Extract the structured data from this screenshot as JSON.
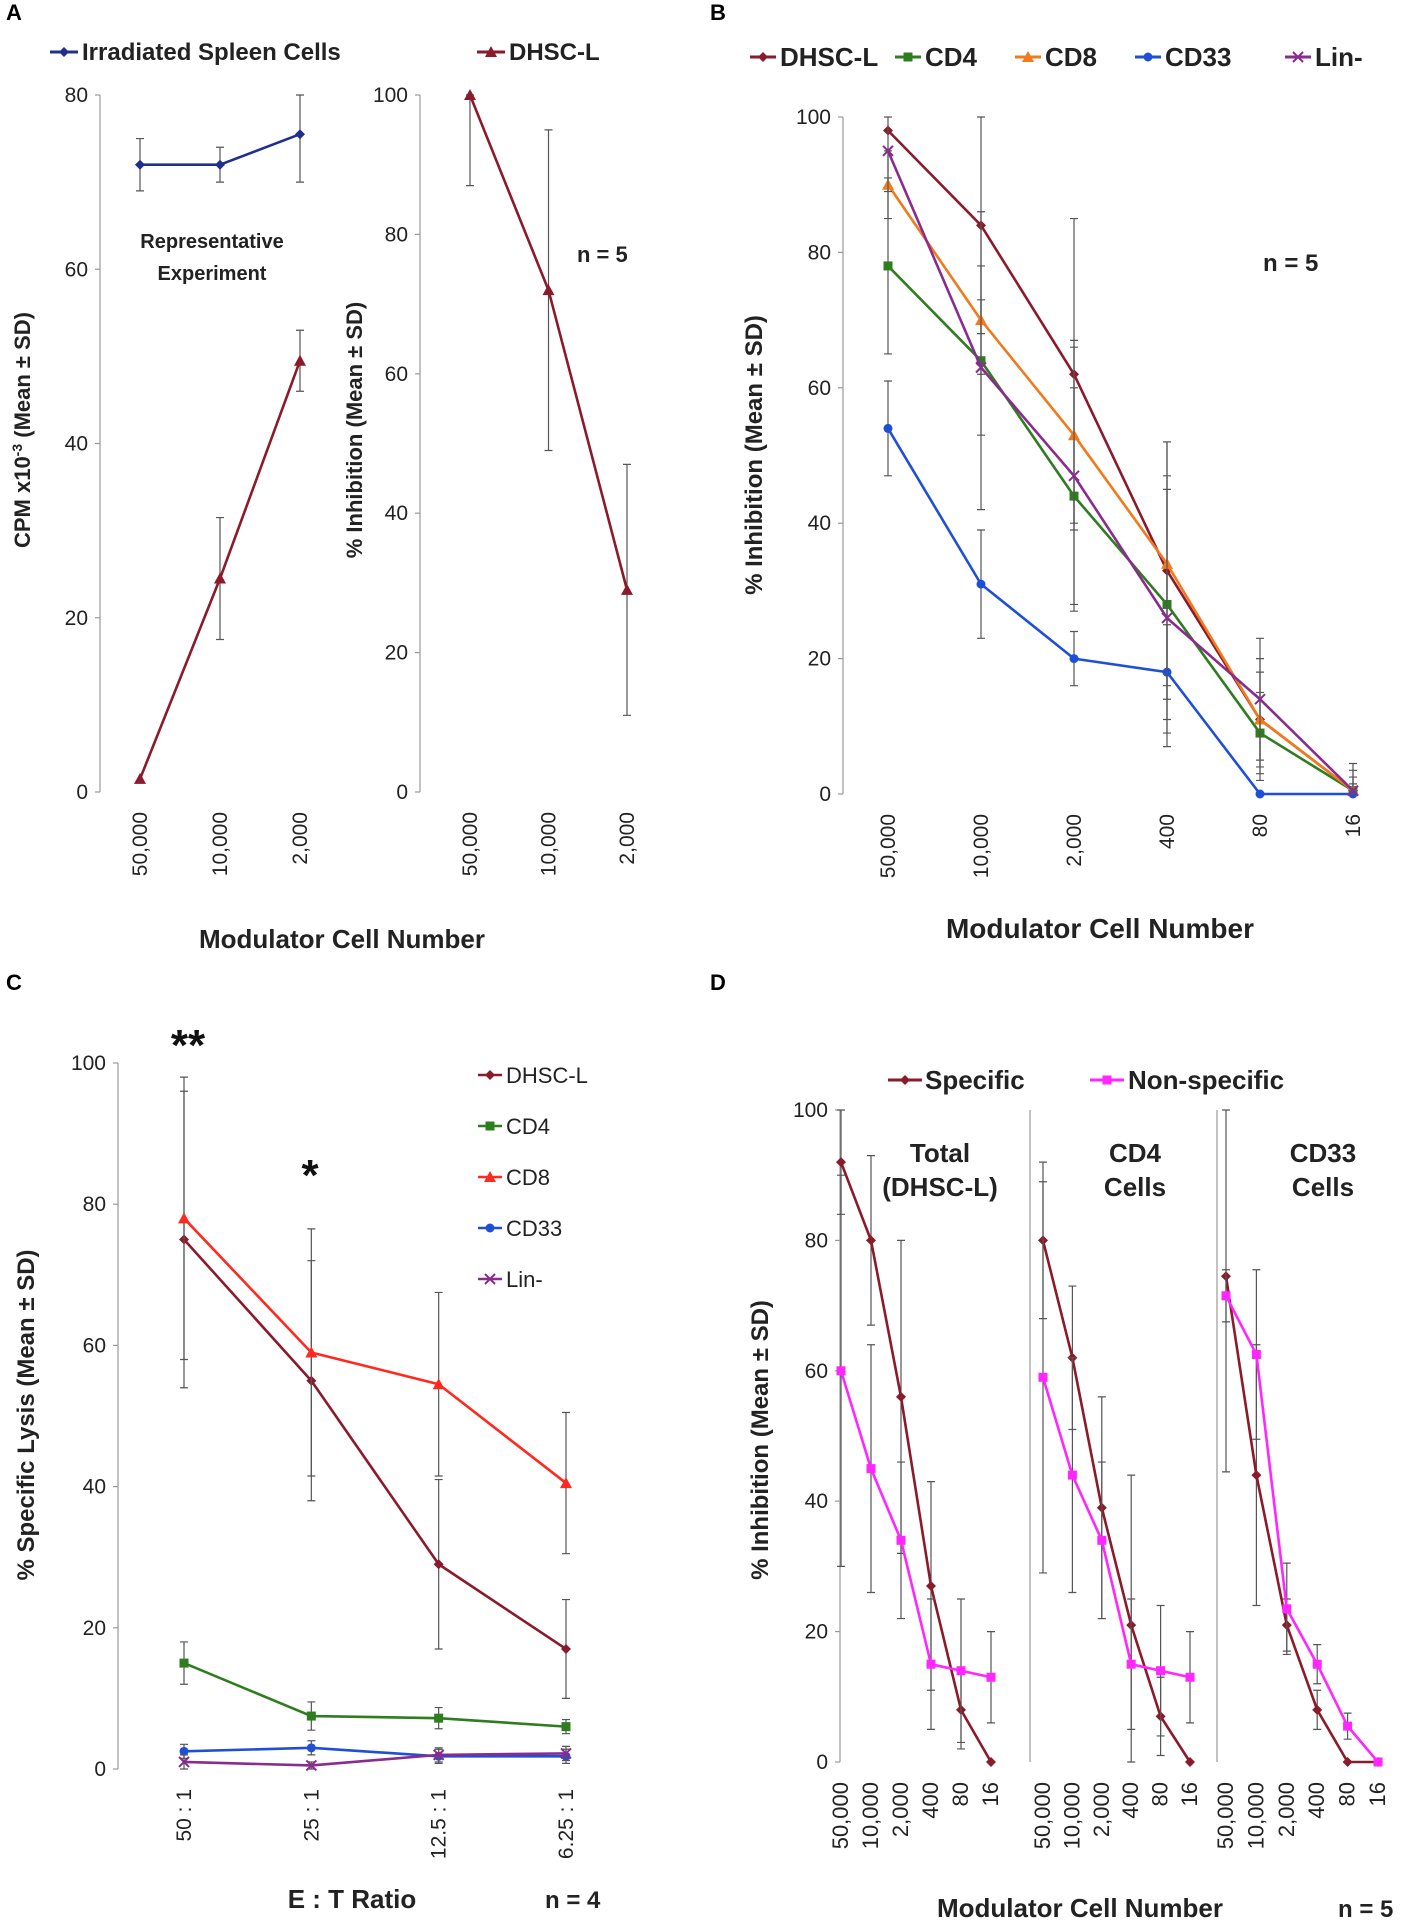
{
  "colors": {
    "dhsc": "#8b1a2b",
    "spleen": "#1f2f8f",
    "cd4": "#2e7d1f",
    "cd8_b": "#f07a1c",
    "cd8_c": "#ff2a1f",
    "cd33": "#1f4fd6",
    "lin": "#8a2b8f",
    "specific": "#8b1a2b",
    "nonspecific": "#ff26ff",
    "error": "#555555",
    "axis": "#999999",
    "text": "#222222"
  },
  "panels": {
    "A": {
      "label": "A",
      "legend": [
        "Irradiated Spleen Cells",
        "DHSC-L"
      ],
      "xlabel": "Modulator Cell Number",
      "annotation": "Representative\nExperiment",
      "n_label": "n = 5"
    },
    "B": {
      "label": "B",
      "xlabel": "Modulator Cell Number",
      "n_label": "n = 5"
    },
    "C": {
      "label": "C",
      "xlabel": "E : T Ratio",
      "n_label": "n = 4",
      "sig1": "**",
      "sig2": "*"
    },
    "D": {
      "label": "D",
      "legend": [
        "Specific",
        "Non-specific"
      ],
      "xlabel": "Modulator Cell Number",
      "n_label": "n = 5",
      "titles": [
        "Total\n(DHSC-L)",
        "CD4\nCells",
        "CD33\nCells"
      ]
    }
  },
  "chart_data": [
    {
      "id": "A1",
      "type": "line",
      "title": "",
      "ylabel": "CPM x10-3 (Mean ± SD)",
      "ylim": [
        0,
        80
      ],
      "yticks": [
        0,
        20,
        40,
        60,
        80
      ],
      "categories": [
        "50,000",
        "10,000",
        "2,000"
      ],
      "series": [
        {
          "name": "Irradiated Spleen Cells",
          "marker": "diamond",
          "values": [
            72,
            72,
            75.5
          ],
          "err": [
            3,
            2,
            5.5
          ]
        },
        {
          "name": "DHSC-L",
          "marker": "triangle",
          "values": [
            1.5,
            24.5,
            49.5
          ],
          "err": [
            0,
            7,
            3.5
          ]
        }
      ]
    },
    {
      "id": "A2",
      "type": "line",
      "ylabel": "% Inhibition (Mean ± SD)",
      "ylim": [
        0,
        100
      ],
      "yticks": [
        0,
        20,
        40,
        60,
        80,
        100
      ],
      "categories": [
        "50,000",
        "10,000",
        "2,000"
      ],
      "series": [
        {
          "name": "DHSC-L",
          "marker": "triangle",
          "values": [
            100,
            72,
            29
          ],
          "err": [
            13,
            23,
            18
          ]
        }
      ]
    },
    {
      "id": "B",
      "type": "line",
      "ylabel": "% Inhibition (Mean ± SD)",
      "ylim": [
        0,
        100
      ],
      "yticks": [
        0,
        20,
        40,
        60,
        80,
        100
      ],
      "categories": [
        "50,000",
        "10,000",
        "2,000",
        "400",
        "80",
        "16"
      ],
      "series": [
        {
          "name": "DHSC-L",
          "marker": "diamond",
          "values": [
            98,
            84,
            62,
            33,
            11,
            0.5
          ],
          "err": [
            0,
            16,
            23,
            19,
            7,
            1
          ]
        },
        {
          "name": "CD4",
          "marker": "square",
          "values": [
            78,
            64,
            44,
            28,
            9,
            0.5
          ],
          "err": [
            13,
            22,
            16,
            19,
            6,
            2
          ]
        },
        {
          "name": "CD8",
          "marker": "triangle",
          "values": [
            90,
            70,
            53,
            34,
            11,
            0.5
          ],
          "err": [
            5,
            8,
            13,
            18,
            9,
            3
          ]
        },
        {
          "name": "CD33",
          "marker": "circle",
          "values": [
            54,
            31,
            20,
            18,
            0,
            0
          ],
          "err": [
            7,
            8,
            4,
            7,
            0,
            0
          ]
        },
        {
          "name": "Lin-",
          "marker": "x",
          "values": [
            95,
            63,
            47,
            26,
            14,
            0.5
          ],
          "err": [
            6,
            10,
            20,
            19,
            9,
            4
          ]
        }
      ]
    },
    {
      "id": "C",
      "type": "line",
      "ylabel": "% Specific Lysis (Mean ± SD)",
      "ylim": [
        0,
        100
      ],
      "yticks": [
        0,
        20,
        40,
        60,
        80,
        100
      ],
      "categories": [
        "50 : 1",
        "25 : 1",
        "12.5 : 1",
        "6.25 : 1"
      ],
      "series": [
        {
          "name": "DHSC-L",
          "marker": "diamond",
          "values": [
            75,
            55,
            29,
            17
          ],
          "err": [
            21,
            17,
            12,
            7
          ]
        },
        {
          "name": "CD4",
          "marker": "square",
          "values": [
            15,
            7.5,
            7.2,
            6
          ],
          "err": [
            3,
            2,
            1.5,
            1
          ]
        },
        {
          "name": "CD8",
          "marker": "triangle",
          "values": [
            78,
            59,
            54.5,
            40.5
          ],
          "err": [
            20,
            17.5,
            13,
            10
          ]
        },
        {
          "name": "CD33",
          "marker": "circle",
          "values": [
            2.5,
            3,
            1.8,
            1.8
          ],
          "err": [
            1,
            1,
            1,
            1
          ]
        },
        {
          "name": "Lin-",
          "marker": "x",
          "values": [
            1,
            0.5,
            2,
            2.2
          ],
          "err": [
            1,
            0.5,
            1,
            1
          ]
        }
      ]
    },
    {
      "id": "D1",
      "type": "line",
      "title": "Total\n(DHSC-L)",
      "ylabel": "% Inhibition (Mean ± SD)",
      "ylim": [
        0,
        100
      ],
      "yticks": [
        0,
        20,
        40,
        60,
        80,
        100
      ],
      "categories": [
        "50,000",
        "10,000",
        "2,000",
        "400",
        "80",
        "16"
      ],
      "series": [
        {
          "name": "Specific",
          "marker": "diamond",
          "values": [
            92,
            80,
            56,
            27,
            8,
            0
          ],
          "err": [
            8,
            13,
            24,
            16,
            6,
            0
          ]
        },
        {
          "name": "Non-specific",
          "marker": "square",
          "values": [
            60,
            45,
            34,
            15,
            14,
            13
          ],
          "err": [
            30,
            19,
            12,
            10,
            11,
            7
          ]
        }
      ]
    },
    {
      "id": "D2",
      "type": "line",
      "title": "CD4\nCells",
      "ylim": [
        0,
        100
      ],
      "categories": [
        "50,000",
        "10,000",
        "2,000",
        "400",
        "80",
        "16"
      ],
      "series": [
        {
          "name": "Specific",
          "marker": "diamond",
          "values": [
            80,
            62,
            39,
            21,
            7,
            0
          ],
          "err": [
            12,
            11,
            17,
            23,
            6,
            0
          ]
        },
        {
          "name": "Non-specific",
          "marker": "square",
          "values": [
            59,
            44,
            34,
            15,
            14,
            13
          ],
          "err": [
            30,
            18,
            12,
            10,
            10,
            7
          ]
        }
      ]
    },
    {
      "id": "D3",
      "type": "line",
      "title": "CD33\nCells",
      "ylim": [
        0,
        100
      ],
      "categories": [
        "50,000",
        "10,000",
        "2,000",
        "400",
        "80",
        "16"
      ],
      "series": [
        {
          "name": "Specific",
          "marker": "diamond",
          "values": [
            74.5,
            44,
            21,
            8,
            0,
            0
          ],
          "err": [
            30,
            20,
            4,
            3,
            0,
            0
          ]
        },
        {
          "name": "Non-specific",
          "marker": "square",
          "values": [
            71.5,
            62.5,
            23.5,
            15,
            5.5,
            0
          ],
          "err": [
            4,
            13,
            7,
            3,
            2,
            0
          ]
        }
      ]
    }
  ]
}
